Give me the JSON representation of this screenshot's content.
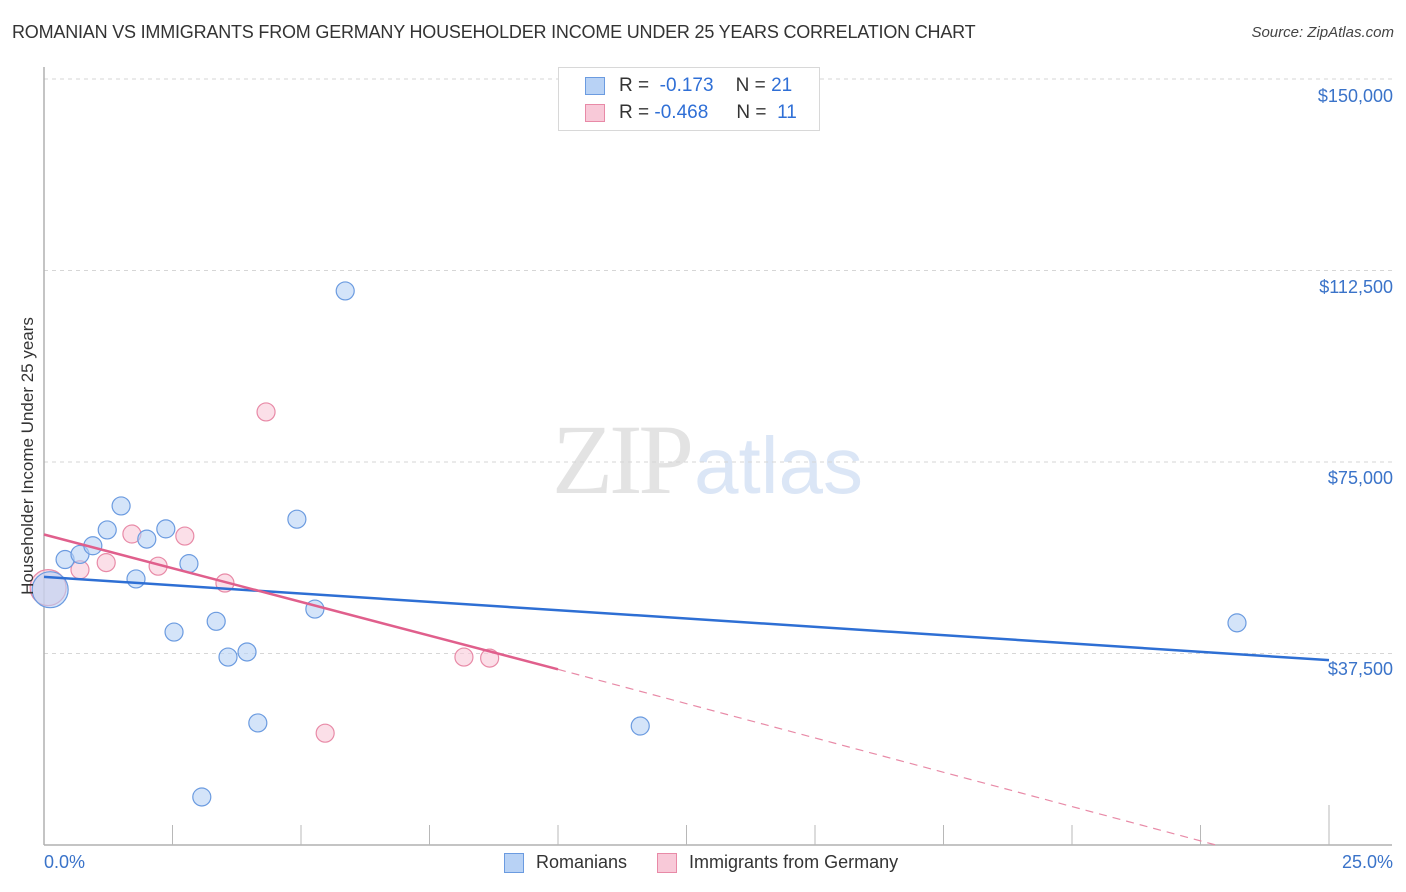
{
  "header": {
    "title": "ROMANIAN VS IMMIGRANTS FROM GERMANY HOUSEHOLDER INCOME UNDER 25 YEARS CORRELATION CHART",
    "source": "Source: ZipAtlas.com"
  },
  "legend": {
    "rows": [
      {
        "r_label": "R =",
        "r_value": "-0.173",
        "n_label": "N =",
        "n_value": "21",
        "color": "#a9c8f0",
        "border": "#6b9be0"
      },
      {
        "r_label": "R =",
        "r_value": "-0.468",
        "n_label": "N =",
        "n_value": "11",
        "color": "#f8c3d3",
        "border": "#e88aa7"
      }
    ],
    "bottom": [
      {
        "label": "Romanians",
        "color": "#b8d2f5",
        "border": "#6b9be0"
      },
      {
        "label": "Immigrants from Germany",
        "color": "#f8c9d8",
        "border": "#e88aa7"
      }
    ]
  },
  "axes": {
    "ylabel": "Householder Income Under 25 years",
    "yticks": [
      "$150,000",
      "$112,500",
      "$75,000",
      "$37,500"
    ],
    "xticks": [
      "0.0%",
      "25.0%"
    ]
  },
  "watermark": {
    "zip": "ZIP",
    "atlas": "atlas"
  },
  "chart_data": {
    "type": "scatter",
    "title": "ROMANIAN VS IMMIGRANTS FROM GERMANY HOUSEHOLDER INCOME UNDER 25 YEARS CORRELATION CHART",
    "xlabel": "",
    "ylabel": "Householder Income Under 25 years",
    "xlim": [
      0,
      25
    ],
    "ylim": [
      0,
      150000
    ],
    "x_unit": "%",
    "y_tick_values": [
      37500,
      75000,
      112500,
      150000
    ],
    "x_tick_labels": [
      "0.0%",
      "25.0%"
    ],
    "grid": true,
    "legend_position": "top-center",
    "series": [
      {
        "name": "Romanians",
        "color": "#6b9be0",
        "R": -0.173,
        "N": 21,
        "points": [
          {
            "x": 0.12,
            "y": 50000,
            "size": "large"
          },
          {
            "x": 0.41,
            "y": 55900
          },
          {
            "x": 0.7,
            "y": 56900
          },
          {
            "x": 0.95,
            "y": 58600
          },
          {
            "x": 1.23,
            "y": 61700
          },
          {
            "x": 1.5,
            "y": 66400
          },
          {
            "x": 1.79,
            "y": 52100
          },
          {
            "x": 2.0,
            "y": 59900
          },
          {
            "x": 2.37,
            "y": 61900
          },
          {
            "x": 2.53,
            "y": 41700
          },
          {
            "x": 2.82,
            "y": 55100
          },
          {
            "x": 3.07,
            "y": 9400
          },
          {
            "x": 3.35,
            "y": 43800
          },
          {
            "x": 3.58,
            "y": 36800
          },
          {
            "x": 3.95,
            "y": 37800
          },
          {
            "x": 4.16,
            "y": 23900
          },
          {
            "x": 4.92,
            "y": 63800
          },
          {
            "x": 5.27,
            "y": 46200
          },
          {
            "x": 5.86,
            "y": 108500
          },
          {
            "x": 11.6,
            "y": 23300
          },
          {
            "x": 23.21,
            "y": 43500
          }
        ],
        "trendline": {
          "x0": 0,
          "y0": 52500,
          "x1": 25,
          "y1": 36200
        }
      },
      {
        "name": "Immigrants from Germany",
        "color": "#e88aa7",
        "R": -0.468,
        "N": 11,
        "points": [
          {
            "x": 0.08,
            "y": 50400,
            "size": "large"
          },
          {
            "x": 0.7,
            "y": 53900
          },
          {
            "x": 1.21,
            "y": 55300
          },
          {
            "x": 1.71,
            "y": 60900
          },
          {
            "x": 2.22,
            "y": 54600
          },
          {
            "x": 2.74,
            "y": 60500
          },
          {
            "x": 3.52,
            "y": 51300
          },
          {
            "x": 4.32,
            "y": 84800
          },
          {
            "x": 5.47,
            "y": 21900
          },
          {
            "x": 8.17,
            "y": 36800
          },
          {
            "x": 8.67,
            "y": 36600
          }
        ],
        "trendline": {
          "x0": 0,
          "y0": 60800,
          "x1": 10,
          "y1": 34400,
          "dashed_extension_to": {
            "x": 22.8,
            "y": 0
          }
        }
      }
    ]
  }
}
